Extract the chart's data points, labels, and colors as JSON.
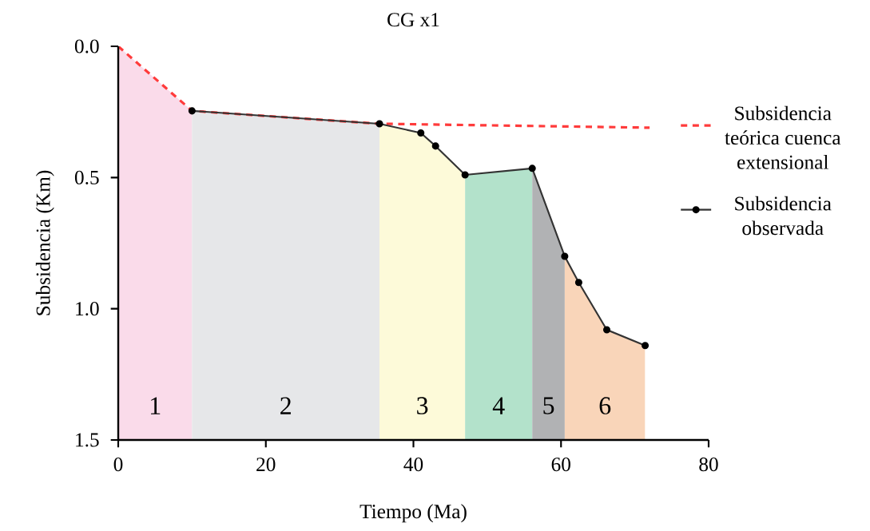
{
  "chart_data": {
    "type": "line",
    "title": "CG x1",
    "xlabel": "Tiempo (Ma)",
    "ylabel": "Subsidencia (Km)",
    "series": [
      {
        "name": "Subsidencia teórica cuenca extensional",
        "color": "#ff3b3b",
        "line_style": "dashed",
        "marker": "none",
        "x": [
          0,
          10,
          35.4,
          72
        ],
        "values": [
          0,
          0.246,
          0.295,
          0.31
        ]
      },
      {
        "name": "Subsidencia observada",
        "color": "#333333",
        "line_style": "solid",
        "marker": "circle",
        "x": [
          10,
          35.4,
          41,
          43,
          47,
          56.1,
          60.5,
          62.4,
          66.2,
          71.4
        ],
        "values": [
          0.246,
          0.295,
          0.33,
          0.38,
          0.49,
          0.465,
          0.8,
          0.9,
          1.08,
          1.14
        ]
      }
    ],
    "xlim": [
      0,
      80
    ],
    "xticks": [
      0,
      20,
      40,
      60,
      80
    ],
    "ylim": [
      1.5,
      0
    ],
    "yticks": [
      {
        "value": 0,
        "label": "0.0"
      },
      {
        "value": 0.5,
        "label": "0.5"
      },
      {
        "value": 1,
        "label": "1.0"
      },
      {
        "value": 1.5,
        "label": "1.5"
      }
    ],
    "bands": [
      {
        "axis": "x",
        "from": 0,
        "to": 10,
        "label": "1",
        "color": "#fadbea"
      },
      {
        "axis": "x",
        "from": 10,
        "to": 35.4,
        "label": "2",
        "color": "#e6e7e9"
      },
      {
        "axis": "x",
        "from": 35.4,
        "to": 47,
        "label": "3",
        "color": "#fdfad9"
      },
      {
        "axis": "x",
        "from": 47,
        "to": 56.1,
        "label": "4",
        "color": "#b3e2cb"
      },
      {
        "axis": "x",
        "from": 56.1,
        "to": 60.5,
        "label": "5",
        "color": "#b1b2b4"
      },
      {
        "axis": "x",
        "from": 60.5,
        "to": 71.4,
        "label": "6",
        "color": "#f9d5b9"
      }
    ],
    "legend": "right",
    "grid": false
  }
}
